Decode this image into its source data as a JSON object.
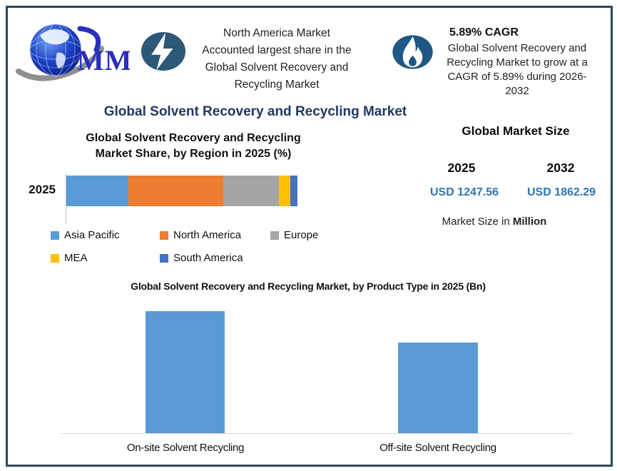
{
  "header": {
    "logo_text": "MMR",
    "stat_left": {
      "icon": "lightning-icon",
      "lines": [
        "North America Market",
        "Accounted largest share in the",
        "Global Solvent Recovery and",
        "Recycling Market"
      ]
    },
    "stat_right": {
      "icon": "flame-icon",
      "heading": "5.89% CAGR",
      "lines": [
        "Global Solvent Recovery and",
        "Recycling Market to grow at a",
        "CAGR of 5.89% during 2026-",
        "2032"
      ]
    }
  },
  "title": "Global Solvent Recovery and Recycling Market",
  "market_size": {
    "heading": "Global Market Size",
    "year_start": "2025",
    "year_end": "2032",
    "value_start": "USD 1247.56",
    "value_end": "USD 1862.29",
    "unit_prefix": "Market Size in ",
    "unit_bold": "Million"
  },
  "colors": {
    "border": "#2B4A57",
    "title_text": "#1F3864",
    "usd_value_text": "#2E75B6",
    "icon_circle_lightning": "#2D5878",
    "icon_circle_flame": "#1F5882",
    "bar_blue": "#5B9BD5"
  },
  "chart_data": [
    {
      "type": "bar",
      "subtype": "stacked-horizontal",
      "title_lines": [
        "Global Solvent Recovery and Recycling",
        "Market Share, by Region in 2025 (%)"
      ],
      "category": "2025",
      "unit": "%",
      "values_estimated_from_pixels": true,
      "legend_position": "bottom",
      "series": [
        {
          "name": "Asia Pacific",
          "value": 27,
          "color": "#5B9BD5"
        },
        {
          "name": "North America",
          "value": 41,
          "color": "#ED7D31"
        },
        {
          "name": "Europe",
          "value": 24,
          "color": "#A5A5A5"
        },
        {
          "name": "MEA",
          "value": 5,
          "color": "#FFC000"
        },
        {
          "name": "South America",
          "value": 3,
          "color": "#4472C4"
        }
      ]
    },
    {
      "type": "bar",
      "subtype": "vertical",
      "title": "Global Solvent Recovery and Recycling Market, by Product Type  in 2025 (Bn)",
      "categories": [
        "On-site Solvent Recycling",
        "Off-site Solvent Recycling"
      ],
      "values": [
        1.0,
        0.74
      ],
      "value_axis": "unlabeled",
      "values_estimated_from_pixels": true,
      "bar_color": "#5B9BD5"
    }
  ]
}
